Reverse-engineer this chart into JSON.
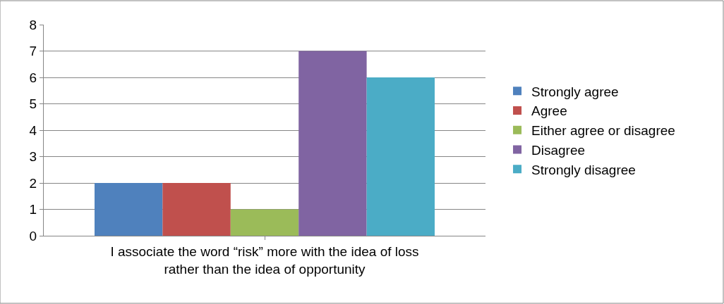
{
  "chart_data": {
    "type": "bar",
    "categories": [
      "I associate the word “risk” more with the idea of loss\nrather than the idea of opportunity"
    ],
    "series": [
      {
        "name": "Strongly agree",
        "color": "#4f81bd",
        "values": [
          2
        ]
      },
      {
        "name": "Agree",
        "color": "#c0504d",
        "values": [
          2
        ]
      },
      {
        "name": "Either agree or disagree",
        "color": "#9bbb59",
        "values": [
          1
        ]
      },
      {
        "name": "Disagree",
        "color": "#8064a2",
        "values": [
          7
        ]
      },
      {
        "name": "Strongly disagree",
        "color": "#4bacc6",
        "values": [
          6
        ]
      }
    ],
    "ylim": [
      0,
      8
    ],
    "yticks": [
      0,
      1,
      2,
      3,
      4,
      5,
      6,
      7,
      8
    ],
    "grid": "y",
    "legend": "right"
  }
}
